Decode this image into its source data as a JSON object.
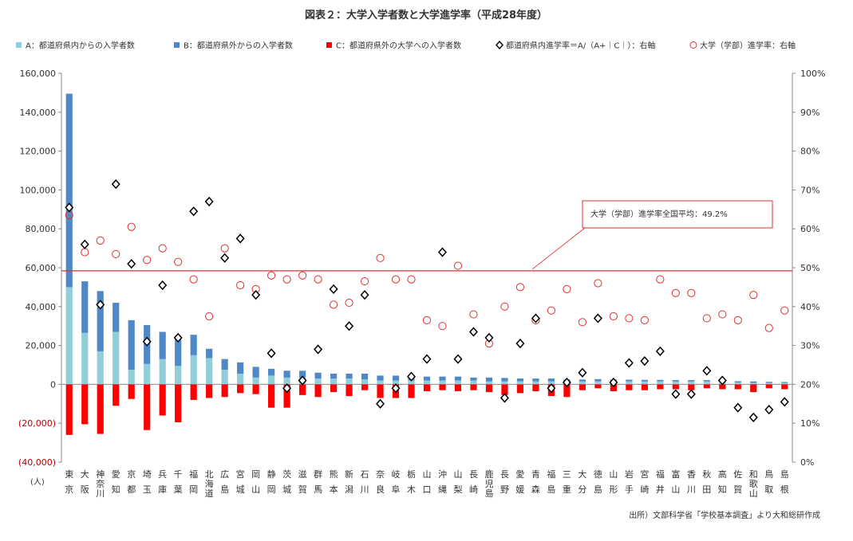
{
  "chart_data": {
    "type": "bar",
    "title": "図表２：大学入学者数と大学進学率（平成28年度）",
    "legend": [
      {
        "key": "A",
        "label": "A：都道府県内からの入学者数",
        "color": "#92cddc",
        "marker": "bar"
      },
      {
        "key": "B",
        "label": "B：都道府県外からの入学者数",
        "color": "#4f88c6",
        "marker": "bar"
      },
      {
        "key": "C",
        "label": "C：都道府県外の大学への入学者数",
        "color": "#ff0000",
        "marker": "bar"
      },
      {
        "key": "D",
        "label": "都道府県内進学率＝A/（A+｜C｜）：右軸",
        "color": "#000000",
        "marker": "diamond"
      },
      {
        "key": "E",
        "label": "大学（学部）進学率：右軸",
        "color": "#e03030",
        "marker": "circle"
      }
    ],
    "left_axis": {
      "ylim": [
        -40000,
        160000
      ],
      "ticks": [
        {
          "value": 160000,
          "label": "160,000"
        },
        {
          "value": 140000,
          "label": "140,000"
        },
        {
          "value": 120000,
          "label": "120,000"
        },
        {
          "value": 100000,
          "label": "100,000"
        },
        {
          "value": 80000,
          "label": "80,000"
        },
        {
          "value": 60000,
          "label": "60,000"
        },
        {
          "value": 40000,
          "label": "40,000"
        },
        {
          "value": 20000,
          "label": "20,000"
        },
        {
          "value": 0,
          "label": "0"
        },
        {
          "value": -20000,
          "label": "(20,000)"
        },
        {
          "value": -40000,
          "label": "(40,000)"
        }
      ],
      "unit": "(人)"
    },
    "right_axis": {
      "ylim": [
        0,
        100
      ],
      "ticks": [
        {
          "value": 100,
          "label": "100%"
        },
        {
          "value": 90,
          "label": "90%"
        },
        {
          "value": 80,
          "label": "80%"
        },
        {
          "value": 70,
          "label": "70%"
        },
        {
          "value": 60,
          "label": "60%"
        },
        {
          "value": 50,
          "label": "50%"
        },
        {
          "value": 40,
          "label": "40%"
        },
        {
          "value": 30,
          "label": "30%"
        },
        {
          "value": 20,
          "label": "20%"
        },
        {
          "value": 10,
          "label": "10%"
        },
        {
          "value": 0,
          "label": "0%"
        }
      ]
    },
    "categories": [
      "東京",
      "大阪",
      "神奈川",
      "愛知",
      "京都",
      "埼玉",
      "兵庫",
      "千葉",
      "福岡",
      "北海道",
      "広島",
      "宮城",
      "岡山",
      "静岡",
      "茨城",
      "滋賀",
      "群馬",
      "熊本",
      "新潟",
      "石川",
      "奈良",
      "岐阜",
      "栃木",
      "山口",
      "沖縄",
      "山梨",
      "長崎",
      "鹿児島",
      "長野",
      "愛媛",
      "青森",
      "福島",
      "三重",
      "大分",
      "徳島",
      "山形",
      "岩手",
      "宮崎",
      "福井",
      "富山",
      "香川",
      "秋田",
      "高知",
      "佐賀",
      "和歌山",
      "鳥取",
      "島根"
    ],
    "series": [
      {
        "key": "A",
        "values": [
          50000,
          26500,
          17000,
          27000,
          7500,
          10500,
          13000,
          9500,
          15000,
          13500,
          7500,
          5500,
          3500,
          4500,
          3500,
          3500,
          3000,
          3000,
          3000,
          2500,
          2000,
          2000,
          2000,
          2000,
          2000,
          2000,
          2000,
          1500,
          1500,
          1500,
          1500,
          1500,
          1500,
          1500,
          1500,
          1500,
          1500,
          1500,
          1500,
          1500,
          1500,
          1500,
          1000,
          1000,
          800,
          700,
          700
        ]
      },
      {
        "key": "B",
        "values": [
          99500,
          26500,
          31000,
          15000,
          25500,
          20000,
          14000,
          14000,
          10500,
          4800,
          5500,
          5800,
          5500,
          3500,
          3500,
          3500,
          3000,
          2500,
          2500,
          3000,
          2500,
          2500,
          2500,
          2000,
          2000,
          2000,
          1500,
          2000,
          1800,
          1500,
          1500,
          1500,
          1000,
          1000,
          1200,
          1000,
          900,
          800,
          800,
          700,
          700,
          700,
          700,
          600,
          700,
          600,
          500
        ]
      },
      {
        "key": "C",
        "values": [
          -26000,
          -20500,
          -25500,
          -11000,
          -7500,
          -23500,
          -16000,
          -19500,
          -8000,
          -7000,
          -6500,
          -4500,
          -5000,
          -12000,
          -12000,
          -5500,
          -6500,
          -4000,
          -6000,
          -3000,
          -7000,
          -7000,
          -7000,
          -3500,
          -3000,
          -3500,
          -3000,
          -4000,
          -5500,
          -4500,
          -3500,
          -6000,
          -6500,
          -3000,
          -2000,
          -3500,
          -3000,
          -3000,
          -2500,
          -2500,
          -3000,
          -2000,
          -2500,
          -2500,
          -4000,
          -2000,
          -2500
        ]
      },
      {
        "key": "D",
        "values": [
          65.5,
          56,
          40.5,
          71.5,
          51,
          31,
          45.5,
          32,
          64.5,
          67,
          52.5,
          57.5,
          43,
          28,
          19,
          21,
          29,
          44.5,
          35,
          43,
          15,
          19,
          22,
          26.5,
          54,
          26.5,
          33.5,
          32,
          16.5,
          30.5,
          37,
          19,
          20.5,
          23,
          37,
          20.5,
          25.5,
          26,
          28.5,
          17.5,
          17.5,
          23.5,
          21,
          14,
          11.5,
          13.5,
          15.5
        ]
      },
      {
        "key": "E",
        "values": [
          63.5,
          54,
          57,
          53.5,
          60.5,
          52,
          55,
          51.5,
          47,
          37.5,
          55,
          45.5,
          44.5,
          48,
          47,
          48,
          47,
          40.5,
          41,
          46.5,
          52.5,
          47,
          47,
          36.5,
          35,
          50.5,
          38,
          30.5,
          40,
          45,
          36.5,
          39,
          44.5,
          36,
          46,
          37.5,
          37,
          36.5,
          47,
          43.5,
          43.5,
          37,
          38,
          36.5,
          43,
          34.5,
          39
        ]
      }
    ],
    "average_line": {
      "value": 49.2,
      "axis": "right",
      "color": "#e03030"
    },
    "annotation": "大学（学部）進学率全国平均：49.2%",
    "source": "出所）文部科学省「学校基本調査」より大和総研作成"
  }
}
